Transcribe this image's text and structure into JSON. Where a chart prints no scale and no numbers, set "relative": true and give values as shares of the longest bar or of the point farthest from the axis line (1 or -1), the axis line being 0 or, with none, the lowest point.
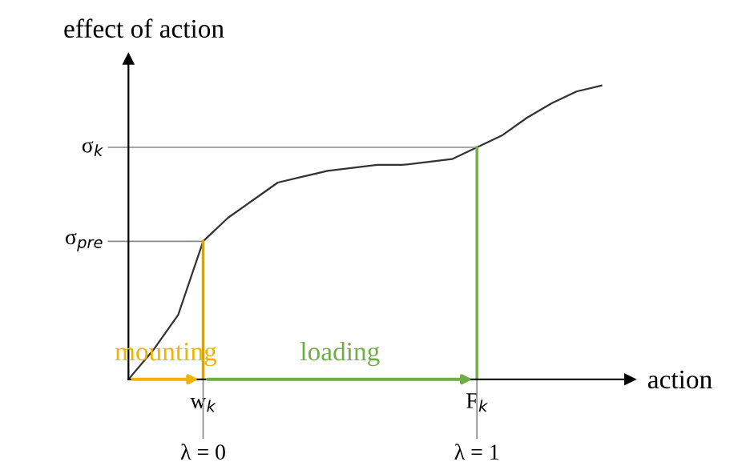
{
  "chart_data": {
    "type": "line",
    "relative": true,
    "xlabel": "action",
    "ylabel": "effect of action",
    "categories": [
      null,
      null,
      null,
      "w$_{k}$",
      null,
      null,
      null,
      null,
      null,
      null,
      null,
      null,
      null,
      null,
      "F$_{k}$",
      null,
      null,
      null,
      null,
      null
    ],
    "series": [
      {
        "color": "#333333",
        "values": [
          0,
          0.1,
          0.22,
          0.47,
          0.55,
          0.61,
          0.67,
          0.69,
          0.71,
          0.72,
          0.73,
          0.73,
          0.74,
          0.75,
          0.79,
          0.83,
          0.89,
          0.94,
          0.98,
          1.0
        ]
      }
    ],
    "annotations": [
      {
        "text": "σ$_{pre}$",
        "x": "w$_{k}$",
        "y": 0.47
      },
      {
        "text": "σ$_{k}$",
        "x": "F$_{k}$",
        "y": 0.79
      },
      "mounting",
      "loading",
      {
        "text": "λ = 0",
        "x": "w$_{k}$"
      },
      {
        "text": "λ = 1",
        "x": "F$_{k}$"
      }
    ],
    "marker": "none",
    "line_style": "solid"
  }
}
